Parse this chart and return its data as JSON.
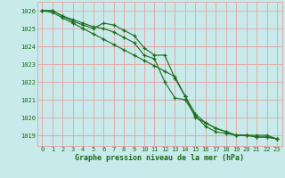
{
  "x": [
    0,
    1,
    2,
    3,
    4,
    5,
    6,
    7,
    8,
    9,
    10,
    11,
    12,
    13,
    14,
    15,
    16,
    17,
    18,
    19,
    20,
    21,
    22,
    23
  ],
  "line1": [
    1026.0,
    1026.0,
    1025.7,
    1025.5,
    1025.3,
    1025.1,
    1025.0,
    1024.8,
    1024.5,
    1024.2,
    1023.5,
    1023.3,
    1022.0,
    1021.1,
    1021.0,
    1020.1,
    1019.5,
    1019.2,
    1019.1,
    1019.0,
    1019.0,
    1018.9,
    1018.9,
    1018.8
  ],
  "line2": [
    1026.0,
    1026.0,
    1025.7,
    1025.4,
    1025.2,
    1025.0,
    1025.3,
    1025.2,
    1024.9,
    1024.6,
    1023.9,
    1023.5,
    1023.5,
    1022.2,
    1021.2,
    1020.0,
    1019.7,
    1019.4,
    1019.2,
    1019.0,
    1019.0,
    1018.9,
    1018.9,
    1018.8
  ],
  "line3": [
    1026.0,
    1025.9,
    1025.6,
    1025.3,
    1025.0,
    1024.7,
    1024.4,
    1024.1,
    1023.8,
    1023.5,
    1023.2,
    1022.9,
    1022.6,
    1022.3,
    1021.2,
    1020.2,
    1019.7,
    1019.4,
    1019.2,
    1019.0,
    1019.0,
    1019.0,
    1019.0,
    1018.8
  ],
  "line_color": "#1a6b1a",
  "bg_color": "#c8eaea",
  "grid_color": "#e8a0a0",
  "text_color": "#1a6b1a",
  "xlabel": "Graphe pression niveau de la mer (hPa)",
  "ylim_min": 1018.4,
  "ylim_max": 1026.5,
  "yticks": [
    1019,
    1020,
    1021,
    1022,
    1023,
    1024,
    1025,
    1026
  ],
  "xticks": [
    0,
    1,
    2,
    3,
    4,
    5,
    6,
    7,
    8,
    9,
    10,
    11,
    12,
    13,
    14,
    15,
    16,
    17,
    18,
    19,
    20,
    21,
    22,
    23
  ],
  "marker": "+",
  "markersize": 3,
  "linewidth": 0.8,
  "tick_fontsize": 5,
  "xlabel_fontsize": 6
}
